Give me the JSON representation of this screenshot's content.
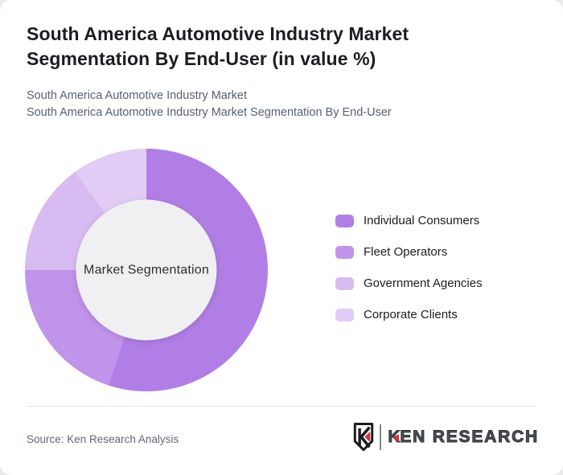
{
  "page": {
    "canvas_background": "#ebebeb",
    "card_background": "#ffffff"
  },
  "header": {
    "title": "South America Automotive Industry Market Segmentation By End-User (in value %)",
    "subtitle_line1": "South America Automotive Industry Market",
    "subtitle_line2": "South America Automotive Industry Market Segmentation By End-User"
  },
  "chart_data": {
    "type": "pie",
    "variant": "donut",
    "title": "South America Automotive Industry Market Segmentation By End-User (in value %)",
    "center_label": "Market Segmentation",
    "unit": "value %",
    "categories": [
      "Individual Consumers",
      "Fleet Operators",
      "Government Agencies",
      "Corporate Clients"
    ],
    "values": [
      55,
      20,
      15,
      10
    ],
    "colors": [
      "#b17ee6",
      "#c094ea",
      "#d7bbf1",
      "#e0ccf5"
    ],
    "start_angle_deg": 0,
    "direction": "clockwise",
    "legend_position": "right",
    "hole_color": "#f0eff1",
    "hole_ratio": 0.58
  },
  "footer": {
    "source_text": "Source: Ken Research Analysis",
    "brand": {
      "name": "KEN RESEARCH",
      "monogram_letter": "K",
      "accent_color": "#c5383c",
      "ink_color": "#1c1c1c"
    }
  }
}
